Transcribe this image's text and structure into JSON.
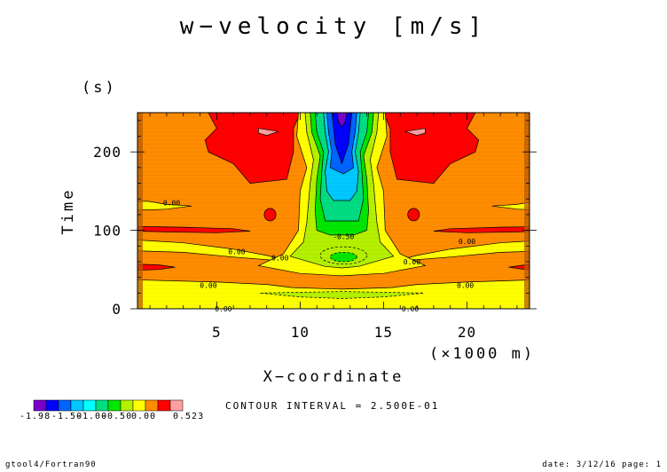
{
  "chart_data": {
    "type": "heatmap",
    "title": "w−velocity [m/s]",
    "xlabel": "X−coordinate",
    "xunit": "(×1000 m)",
    "ylabel": "Time",
    "yunit": "(s)",
    "xlim": [
      0.25,
      23.75
    ],
    "ylim": [
      0,
      250
    ],
    "xticks": [
      5,
      10,
      15,
      20
    ],
    "yticks": [
      0,
      100,
      200
    ],
    "contour_interval": "CONTOUR INTERVAL = 2.500E-01",
    "contour_labels": [
      {
        "text": "0.00",
        "x": 2.3,
        "y": 135
      },
      {
        "text": "0.00",
        "x": 6.2,
        "y": 73
      },
      {
        "text": "0.00",
        "x": 8.8,
        "y": 65
      },
      {
        "text": "0.00",
        "x": 4.5,
        "y": 30
      },
      {
        "text": "0.00",
        "x": 5.4,
        "y": 0
      },
      {
        "text": "-0.50",
        "x": 12.6,
        "y": 92
      },
      {
        "text": "0.00",
        "x": 16.7,
        "y": 60
      },
      {
        "text": "0.00",
        "x": 20.0,
        "y": 86
      },
      {
        "text": "0.00",
        "x": 19.9,
        "y": 30
      },
      {
        "text": "0.00",
        "x": 16.6,
        "y": 0
      }
    ],
    "colorbar": {
      "colors": [
        "#7800c8",
        "#0000ff",
        "#0064ff",
        "#00c8ff",
        "#00ffff",
        "#00dc82",
        "#00e600",
        "#b4f000",
        "#ffff00",
        "#ff8c00",
        "#ff0000",
        "#ffa0a0"
      ],
      "labels": [
        "-1.98",
        "-1.50",
        "-1.00",
        "-0.50",
        "0.00",
        "0.523"
      ]
    }
  },
  "footer": {
    "left": "gtool4/Fortran90",
    "right": "date: 3/12/16 page: 1"
  }
}
